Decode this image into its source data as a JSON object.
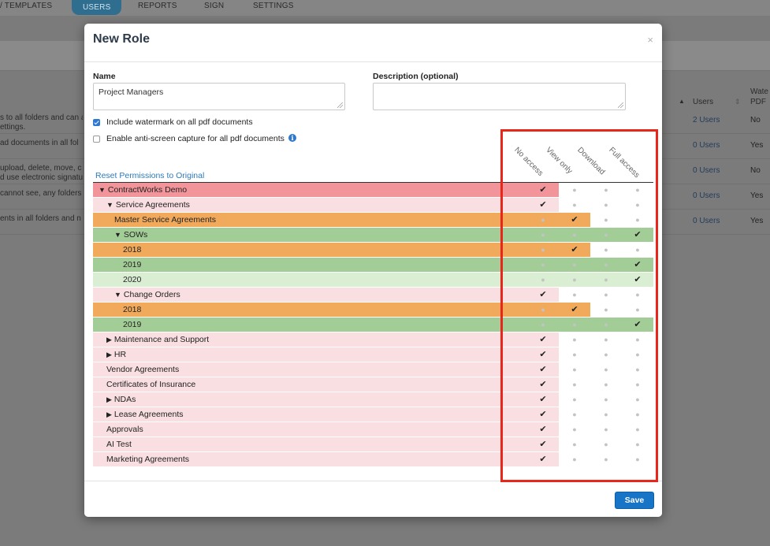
{
  "nav": {
    "items": [
      {
        "label": "/ TEMPLATES",
        "active": false
      },
      {
        "label": "USERS",
        "active": true
      },
      {
        "label": "REPORTS",
        "active": false
      },
      {
        "label": "SIGN",
        "active": false
      },
      {
        "label": "SETTINGS",
        "active": false
      }
    ]
  },
  "bg_table": {
    "headers": {
      "users": "Users",
      "watermark_a": "Wate",
      "watermark_b": "PDF"
    },
    "rows": [
      {
        "desc1": "s to all folders and can a",
        "desc2": "ettings.",
        "users": "2 Users",
        "wm": "No"
      },
      {
        "desc1": "ad documents in all fol",
        "desc2": "",
        "users": "0 Users",
        "wm": "Yes"
      },
      {
        "desc1": "upload, delete, move, c",
        "desc2": "d use electronic signatu",
        "users": "0 Users",
        "wm": "No"
      },
      {
        "desc1": "cannot see, any folders",
        "desc2": "",
        "users": "0 Users",
        "wm": "Yes"
      },
      {
        "desc1": "ents in all folders and n",
        "desc2": "",
        "users": "0 Users",
        "wm": "Yes"
      }
    ]
  },
  "modal": {
    "title": "New Role",
    "close": "×",
    "name_label": "Name",
    "name_value": "Project Managers",
    "desc_label": "Description (optional)",
    "desc_value": "",
    "watermark_label": "Include watermark on all pdf documents",
    "watermark_checked": true,
    "anticapture_label": "Enable anti-screen capture for all pdf documents",
    "anticapture_checked": false,
    "info_icon": "i",
    "reset_label": "Reset Permissions to Original",
    "columns": [
      "No access",
      "View only",
      "Download",
      "Full access"
    ],
    "save_label": "Save"
  },
  "colors": {
    "red": "#f2959b",
    "pink": "#f9dfe1",
    "orange": "#f1a95c",
    "green": "#a3cd96",
    "lightgreen": "#d9eed3",
    "highlight": "#e8271a",
    "primary": "#1774c7"
  },
  "rows": [
    {
      "name": "ContractWorks Demo",
      "indent": 0,
      "arrow": "▼",
      "level": 0,
      "color": "red"
    },
    {
      "name": "Service Agreements",
      "indent": 1,
      "arrow": "▼",
      "level": 0,
      "color": "pink"
    },
    {
      "name": "Master Service Agreements",
      "indent": 2,
      "arrow": "",
      "level": 1,
      "color": "orange"
    },
    {
      "name": "SOWs",
      "indent": 2,
      "arrow": "▼",
      "level": 3,
      "color": "green"
    },
    {
      "name": "2018",
      "indent": 3,
      "arrow": "",
      "level": 1,
      "color": "orange"
    },
    {
      "name": "2019",
      "indent": 3,
      "arrow": "",
      "level": 3,
      "color": "green"
    },
    {
      "name": "2020",
      "indent": 3,
      "arrow": "",
      "level": 3,
      "color": "lightgreen"
    },
    {
      "name": "Change Orders",
      "indent": 2,
      "arrow": "▼",
      "level": 0,
      "color": "pink"
    },
    {
      "name": "2018",
      "indent": 3,
      "arrow": "",
      "level": 1,
      "color": "orange"
    },
    {
      "name": "2019",
      "indent": 3,
      "arrow": "",
      "level": 3,
      "color": "green"
    },
    {
      "name": "Maintenance and Support",
      "indent": 1,
      "arrow": "▶",
      "level": 0,
      "color": "pink"
    },
    {
      "name": "HR",
      "indent": 1,
      "arrow": "▶",
      "level": 0,
      "color": "pink"
    },
    {
      "name": "Vendor Agreements",
      "indent": 1,
      "arrow": "",
      "level": 0,
      "color": "pink"
    },
    {
      "name": "Certificates of Insurance",
      "indent": 1,
      "arrow": "",
      "level": 0,
      "color": "pink"
    },
    {
      "name": "NDAs",
      "indent": 1,
      "arrow": "▶",
      "level": 0,
      "color": "pink"
    },
    {
      "name": "Lease Agreements",
      "indent": 1,
      "arrow": "▶",
      "level": 0,
      "color": "pink"
    },
    {
      "name": "Approvals",
      "indent": 1,
      "arrow": "",
      "level": 0,
      "color": "pink"
    },
    {
      "name": "AI Test",
      "indent": 1,
      "arrow": "",
      "level": 0,
      "color": "pink"
    },
    {
      "name": "Marketing Agreements",
      "indent": 1,
      "arrow": "",
      "level": 0,
      "color": "pink"
    }
  ]
}
